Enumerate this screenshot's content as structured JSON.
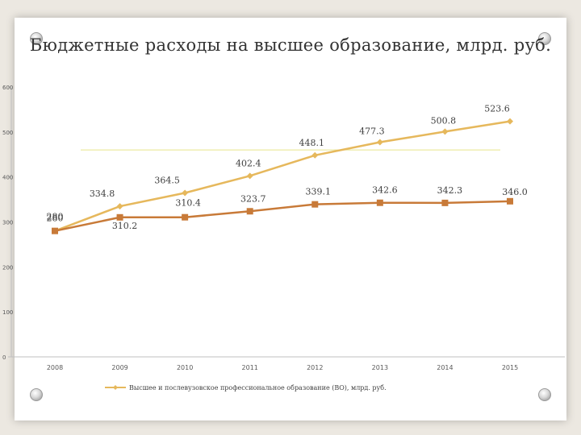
{
  "chart_data": {
    "type": "line",
    "title": "Бюджетные расходы на высшее образование, млрд. руб.",
    "categories": [
      "2008",
      "2009",
      "2010",
      "2011",
      "2012",
      "2013",
      "2014",
      "2015"
    ],
    "ylim": [
      0,
      600
    ],
    "yticks": [
      "0",
      "100",
      "200",
      "300",
      "400",
      "500",
      "600"
    ],
    "grid": false,
    "legend_position": "bottom",
    "series": [
      {
        "name": "Высшее и послевузовское профессиональное образование (ВО), млрд. руб.",
        "color": "#e6b85c",
        "marker": "diamond",
        "values": [
          280,
          334.8,
          364.5,
          402.4,
          448.1,
          477.3,
          500.8,
          523.6
        ],
        "labels": [
          "280",
          "334.8",
          "364.5",
          "402.4",
          "448.1",
          "477.3",
          "500.8",
          "523.6"
        ]
      },
      {
        "name": "",
        "color": "#c87a38",
        "marker": "square",
        "values": [
          280,
          310.2,
          310.4,
          323.7,
          339.1,
          342.6,
          342.3,
          346.0
        ],
        "labels": [
          "280",
          "310.2",
          "310.4",
          "323.7",
          "339.1",
          "342.6",
          "342.3",
          "346.0"
        ]
      }
    ],
    "reference_line": {
      "value": 460,
      "color": "#e8e48a"
    }
  }
}
